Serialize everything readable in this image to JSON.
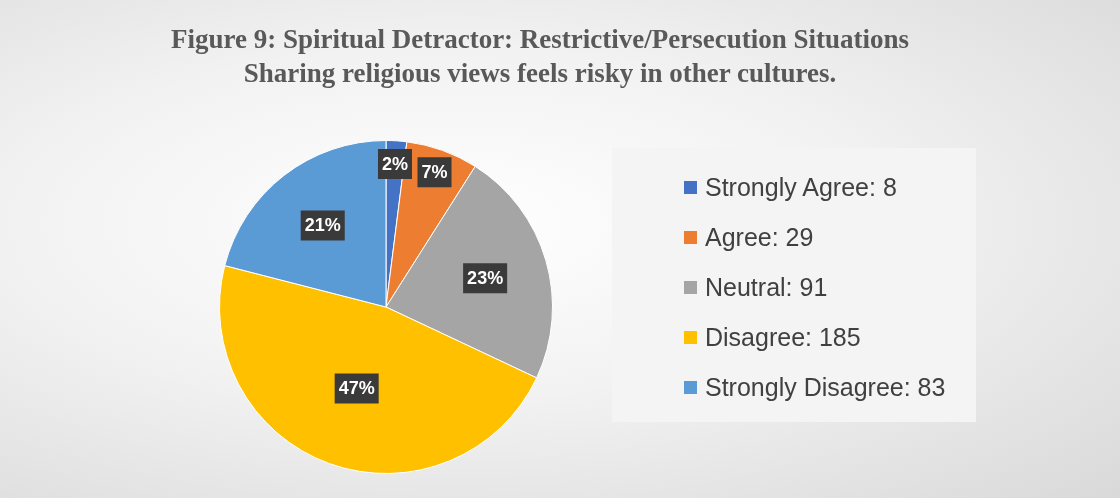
{
  "chart_data": {
    "type": "pie",
    "title": "Figure 9: Spiritual Detractor: Restrictive/Persecution Situations",
    "subtitle": "Sharing religious views feels risky in other cultures.",
    "categories": [
      "Strongly Agree: 8",
      "Agree: 29",
      "Neutral: 91",
      "Disagree: 185",
      "Strongly Disagree: 83"
    ],
    "values": [
      2,
      7,
      23,
      47,
      21
    ],
    "value_labels": [
      "2%",
      "7%",
      "23%",
      "47%",
      "21%"
    ],
    "colors": [
      "#4472c4",
      "#ed7d31",
      "#a5a5a5",
      "#ffc000",
      "#5b9bd5"
    ],
    "legend": "right"
  }
}
